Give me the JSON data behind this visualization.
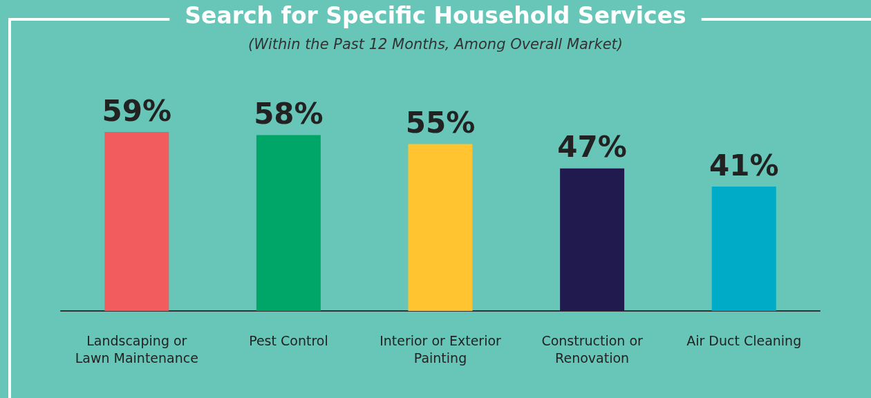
{
  "chart_data": {
    "type": "bar",
    "title": "Search for Specific Household Services",
    "subtitle": "(Within the Past 12 Months, Among Overall Market)",
    "categories": [
      "Landscaping or\nLawn Maintenance",
      "Pest Control",
      "Interior or Exterior\nPainting",
      "Construction or\nRenovation",
      "Air Duct Cleaning"
    ],
    "values": [
      59,
      58,
      55,
      47,
      41
    ],
    "colors": [
      "#f25c5f",
      "#00a667",
      "#ffc42f",
      "#201a4f",
      "#00abc8"
    ],
    "data_labels": true,
    "value_labels": [
      "59%",
      "58%",
      "55%",
      "47%",
      "41%"
    ]
  }
}
